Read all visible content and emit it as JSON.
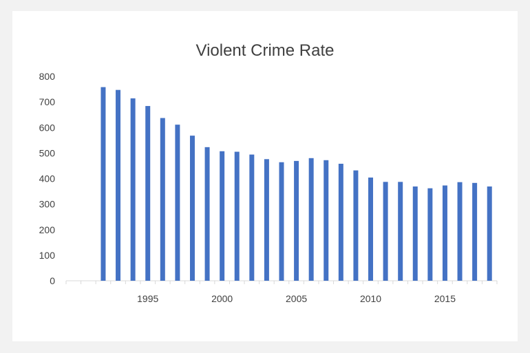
{
  "chart_data": {
    "type": "bar",
    "title": "Violent Crime Rate",
    "xlabel": "",
    "ylabel": "",
    "ylim": [
      0,
      800
    ],
    "yticks": [
      0,
      100,
      200,
      300,
      400,
      500,
      600,
      700,
      800
    ],
    "xticks": [
      1995,
      2000,
      2005,
      2010,
      2015
    ],
    "xlim": [
      1990,
      2018
    ],
    "grid": false,
    "colors": {
      "bar": "#4472c4",
      "axis": "#d9d9d9",
      "text": "#404040"
    },
    "categories": [
      1992,
      1993,
      1994,
      1995,
      1996,
      1997,
      1998,
      1999,
      2000,
      2001,
      2002,
      2003,
      2004,
      2005,
      2006,
      2007,
      2008,
      2009,
      2010,
      2011,
      2012,
      2013,
      2014,
      2015,
      2016,
      2017,
      2018
    ],
    "values": [
      758,
      747,
      714,
      684,
      637,
      611,
      568,
      523,
      507,
      505,
      494,
      476,
      464,
      469,
      480,
      472,
      458,
      432,
      404,
      387,
      387,
      369,
      362,
      373,
      386,
      383,
      369
    ]
  }
}
